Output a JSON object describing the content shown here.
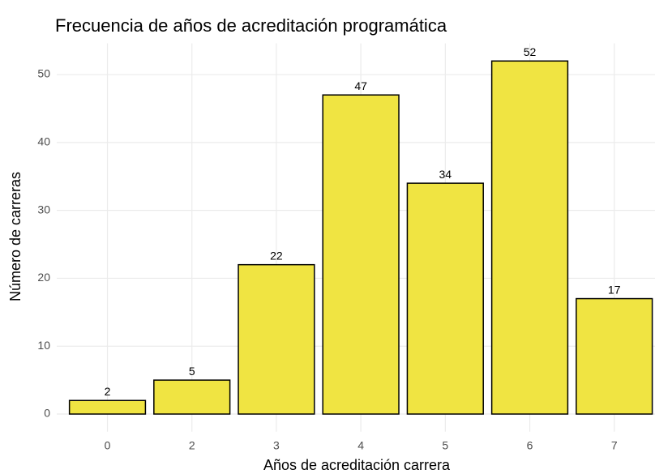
{
  "chart_data": {
    "type": "bar",
    "title": "Frecuencia de años de acreditación programática",
    "x_label": "Años de acreditación carrera",
    "y_label": "Número de carreras",
    "categories": [
      "0",
      "2",
      "3",
      "4",
      "5",
      "6",
      "7"
    ],
    "values": [
      2,
      5,
      22,
      47,
      34,
      52,
      17
    ],
    "color": "#f0e442",
    "ylim": [
      -2.6,
      54.6
    ],
    "yticks": [
      0,
      10,
      20,
      30,
      40,
      50
    ],
    "grid": true
  }
}
